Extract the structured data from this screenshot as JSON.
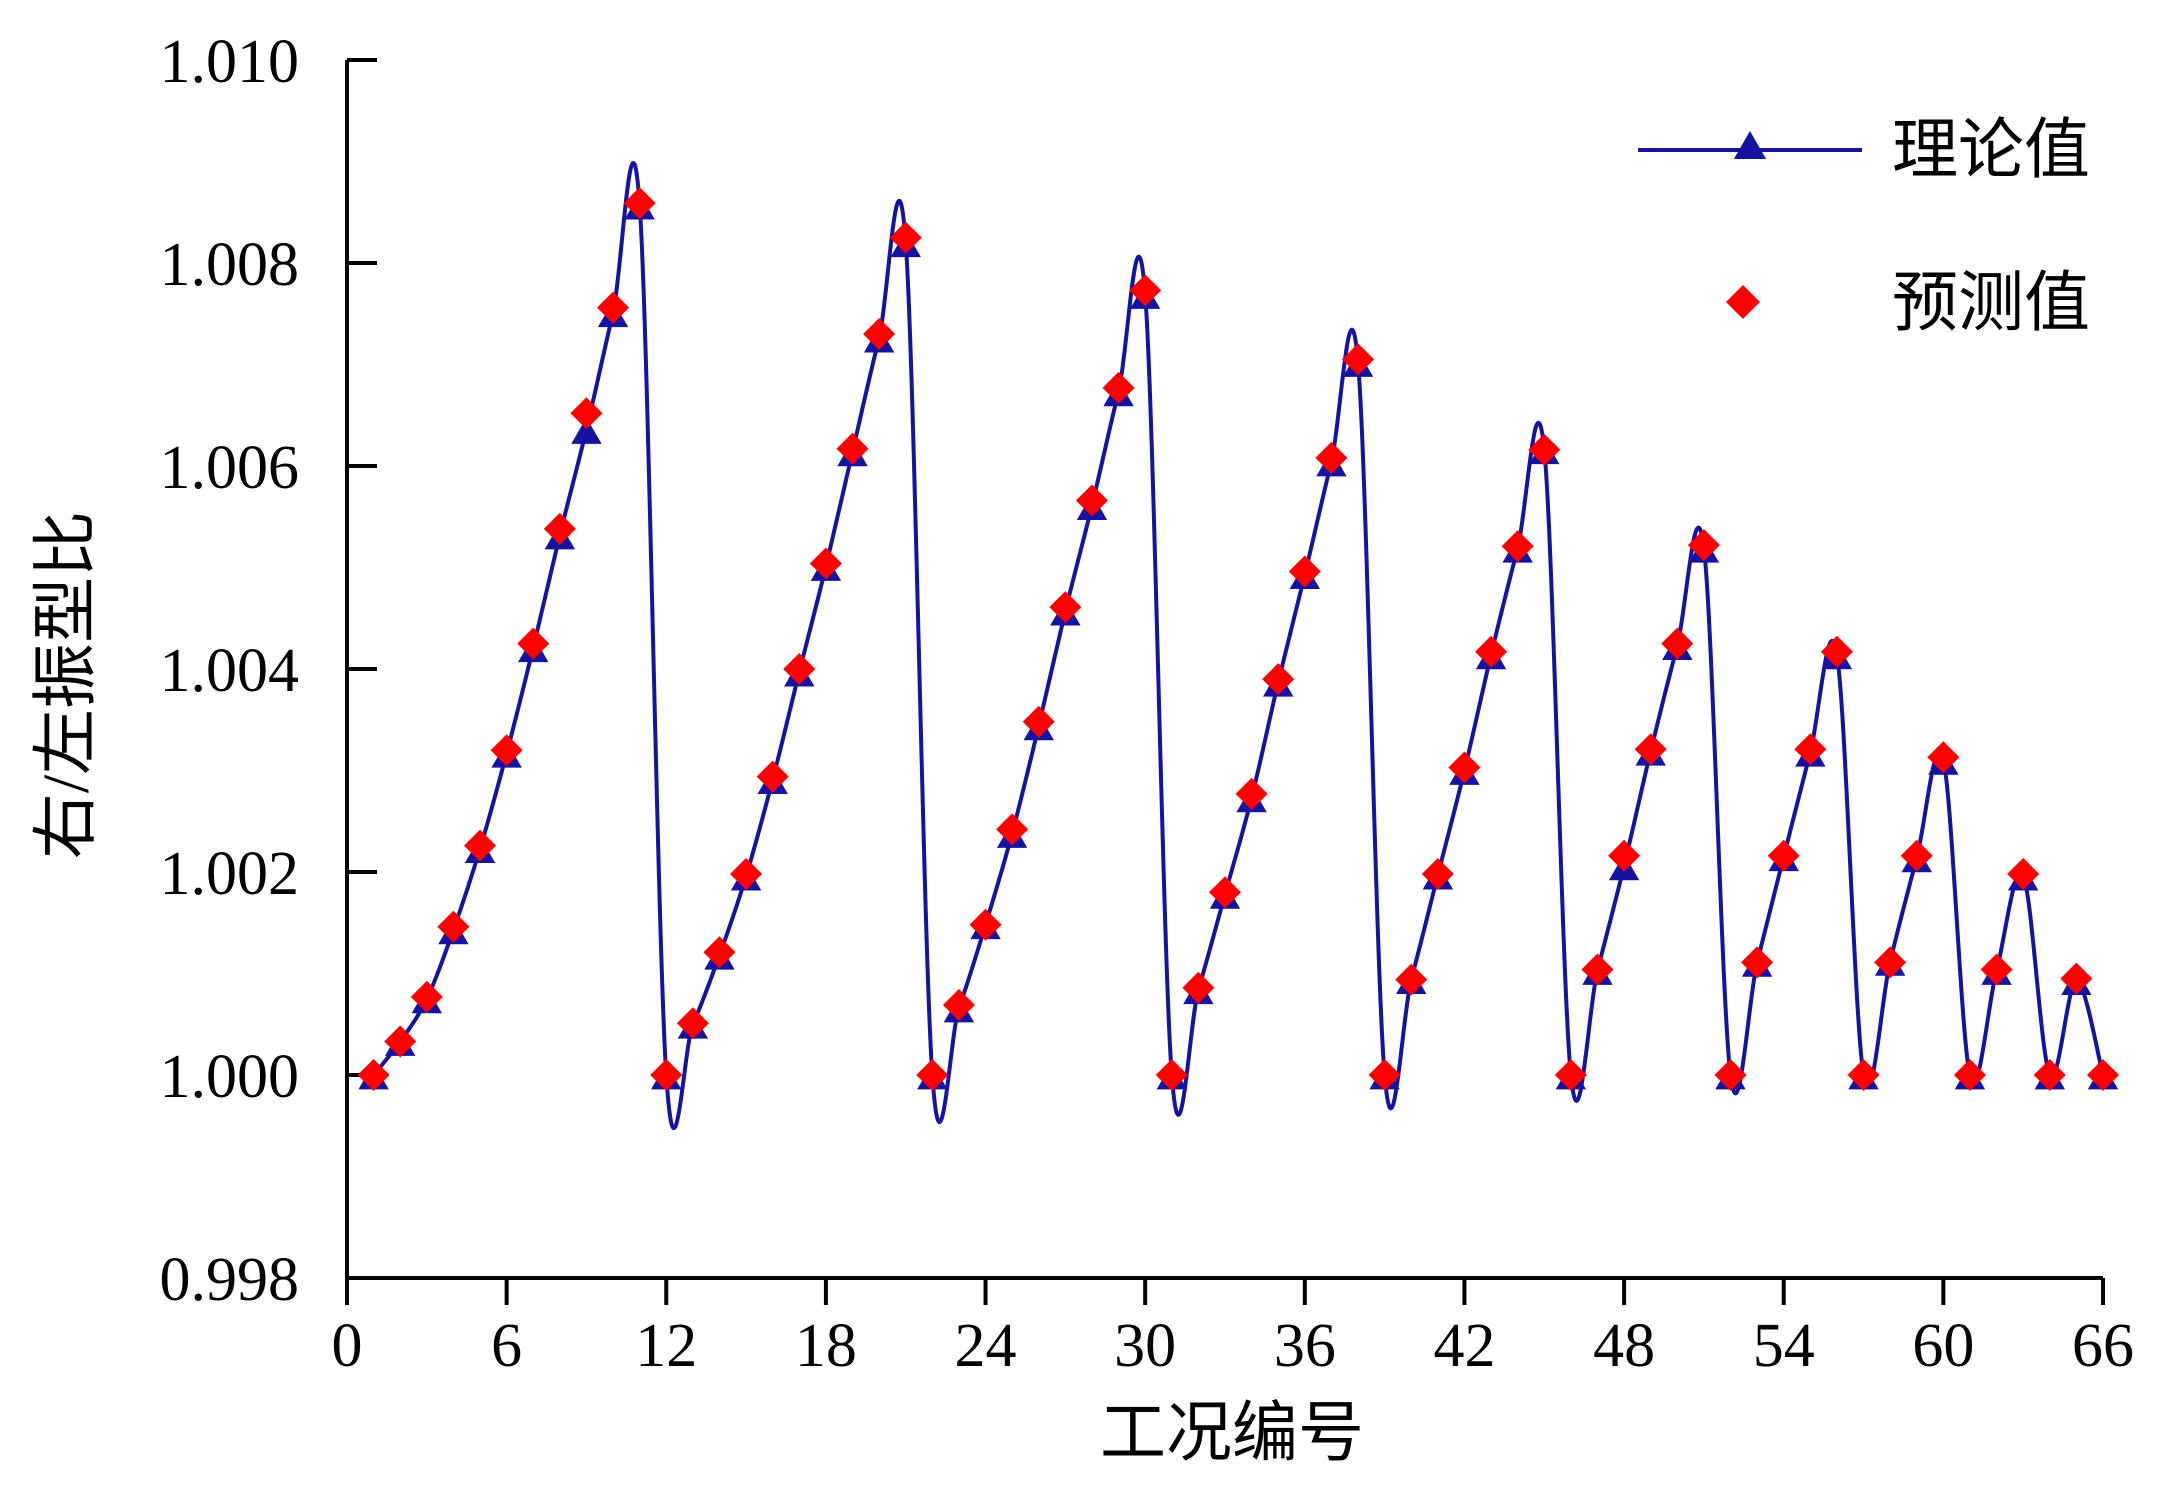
{
  "colors": {
    "theoretical": "#1414a0",
    "predicted": "#ff0000",
    "axis": "#000000",
    "background": "#ffffff"
  },
  "chart_data": {
    "type": "line",
    "xlabel": "工况编号",
    "ylabel": "右/左振型比",
    "xlim": [
      0,
      66
    ],
    "ylim": [
      0.998,
      1.01
    ],
    "xticks": [
      0,
      6,
      12,
      18,
      24,
      30,
      36,
      42,
      48,
      54,
      60,
      66
    ],
    "xtick_labels": [
      "0",
      "6",
      "12",
      "18",
      "24",
      "30",
      "36",
      "42",
      "48",
      "54",
      "60",
      "66"
    ],
    "yticks": [
      0.998,
      1.0,
      1.002,
      1.004,
      1.006,
      1.008,
      1.01
    ],
    "ytick_labels": [
      "0.998",
      "1.000",
      "1.002",
      "1.004",
      "1.006",
      "1.008",
      "1.010"
    ],
    "grid": false,
    "legend_position": "top-right",
    "series": [
      {
        "name": "理论值",
        "marker": "triangle",
        "line": true,
        "points": [
          [
            1,
            1.0
          ],
          [
            2,
            1.00033
          ],
          [
            3,
            1.00075
          ],
          [
            4,
            1.00143
          ],
          [
            5,
            1.00223
          ],
          [
            6,
            1.00317
          ],
          [
            7,
            1.00421
          ],
          [
            8,
            1.00532
          ],
          [
            9,
            1.00636
          ],
          [
            10,
            1.00751
          ],
          [
            11,
            1.00857
          ],
          [
            12,
            1.0
          ],
          [
            13,
            1.0005
          ],
          [
            14,
            1.00118
          ],
          [
            15,
            1.00196
          ],
          [
            16,
            1.00291
          ],
          [
            17,
            1.00397
          ],
          [
            18,
            1.00501
          ],
          [
            19,
            1.00614
          ],
          [
            20,
            1.00726
          ],
          [
            21,
            1.0082
          ],
          [
            22,
            1.0
          ],
          [
            23,
            1.00066
          ],
          [
            24,
            1.00148
          ],
          [
            25,
            1.00238
          ],
          [
            26,
            1.00344
          ],
          [
            27,
            1.00457
          ],
          [
            28,
            1.00561
          ],
          [
            29,
            1.00673
          ],
          [
            30,
            1.00769
          ],
          [
            31,
            1.0
          ],
          [
            32,
            1.00084
          ],
          [
            33,
            1.00178
          ],
          [
            34,
            1.00273
          ],
          [
            35,
            1.00387
          ],
          [
            36,
            1.00493
          ],
          [
            37,
            1.00604
          ],
          [
            38,
            1.00702
          ],
          [
            39,
            1.0
          ],
          [
            40,
            1.00094
          ],
          [
            41,
            1.00197
          ],
          [
            42,
            1.003
          ],
          [
            43,
            1.00414
          ],
          [
            44,
            1.00519
          ],
          [
            45,
            1.00616
          ],
          [
            46,
            1.0
          ],
          [
            47,
            1.00103
          ],
          [
            48,
            1.00206
          ],
          [
            49,
            1.00319
          ],
          [
            50,
            1.00423
          ],
          [
            51,
            1.00519
          ],
          [
            52,
            1.0
          ],
          [
            53,
            1.00111
          ],
          [
            54,
            1.00215
          ],
          [
            55,
            1.00318
          ],
          [
            56,
            1.00414
          ],
          [
            57,
            1.0
          ],
          [
            58,
            1.00112
          ],
          [
            59,
            1.00214
          ],
          [
            60,
            1.0031
          ],
          [
            61,
            1.0
          ],
          [
            62,
            1.00103
          ],
          [
            63,
            1.00196
          ],
          [
            64,
            1.0
          ],
          [
            65,
            1.00093
          ],
          [
            66,
            1.0
          ]
        ]
      },
      {
        "name": "预测值",
        "marker": "diamond",
        "line": false,
        "points": [
          [
            1,
            1.0
          ],
          [
            2,
            1.00033
          ],
          [
            3,
            1.00077
          ],
          [
            4,
            1.00146
          ],
          [
            5,
            1.00226
          ],
          [
            6,
            1.0032
          ],
          [
            7,
            1.00425
          ],
          [
            8,
            1.00538
          ],
          [
            9,
            1.00652
          ],
          [
            10,
            1.00756
          ],
          [
            11,
            1.00859
          ],
          [
            12,
            1.0
          ],
          [
            13,
            1.00051
          ],
          [
            14,
            1.00121
          ],
          [
            15,
            1.00198
          ],
          [
            16,
            1.00294
          ],
          [
            17,
            1.004
          ],
          [
            18,
            1.00504
          ],
          [
            19,
            1.00617
          ],
          [
            20,
            1.0073
          ],
          [
            21,
            1.00825
          ],
          [
            22,
            1.0
          ],
          [
            23,
            1.00069
          ],
          [
            24,
            1.00148
          ],
          [
            25,
            1.00242
          ],
          [
            26,
            1.00348
          ],
          [
            27,
            1.00461
          ],
          [
            28,
            1.00566
          ],
          [
            29,
            1.00677
          ],
          [
            30,
            1.00773
          ],
          [
            31,
            1.0
          ],
          [
            32,
            1.00086
          ],
          [
            33,
            1.0018
          ],
          [
            34,
            1.00277
          ],
          [
            35,
            1.0039
          ],
          [
            36,
            1.00496
          ],
          [
            37,
            1.00608
          ],
          [
            38,
            1.00705
          ],
          [
            39,
            1.0
          ],
          [
            40,
            1.00094
          ],
          [
            41,
            1.00198
          ],
          [
            42,
            1.00303
          ],
          [
            43,
            1.00417
          ],
          [
            44,
            1.00521
          ],
          [
            45,
            1.00616
          ],
          [
            46,
            1.0
          ],
          [
            47,
            1.00104
          ],
          [
            48,
            1.00216
          ],
          [
            49,
            1.00321
          ],
          [
            50,
            1.00425
          ],
          [
            51,
            1.00522
          ],
          [
            52,
            1.0
          ],
          [
            53,
            1.00111
          ],
          [
            54,
            1.00216
          ],
          [
            55,
            1.00321
          ],
          [
            56,
            1.00417
          ],
          [
            57,
            1.0
          ],
          [
            58,
            1.00111
          ],
          [
            59,
            1.00216
          ],
          [
            60,
            1.00313
          ],
          [
            61,
            1.0
          ],
          [
            62,
            1.00104
          ],
          [
            63,
            1.00198
          ],
          [
            64,
            1.0
          ],
          [
            65,
            1.00095
          ],
          [
            66,
            1.0
          ]
        ]
      }
    ]
  }
}
